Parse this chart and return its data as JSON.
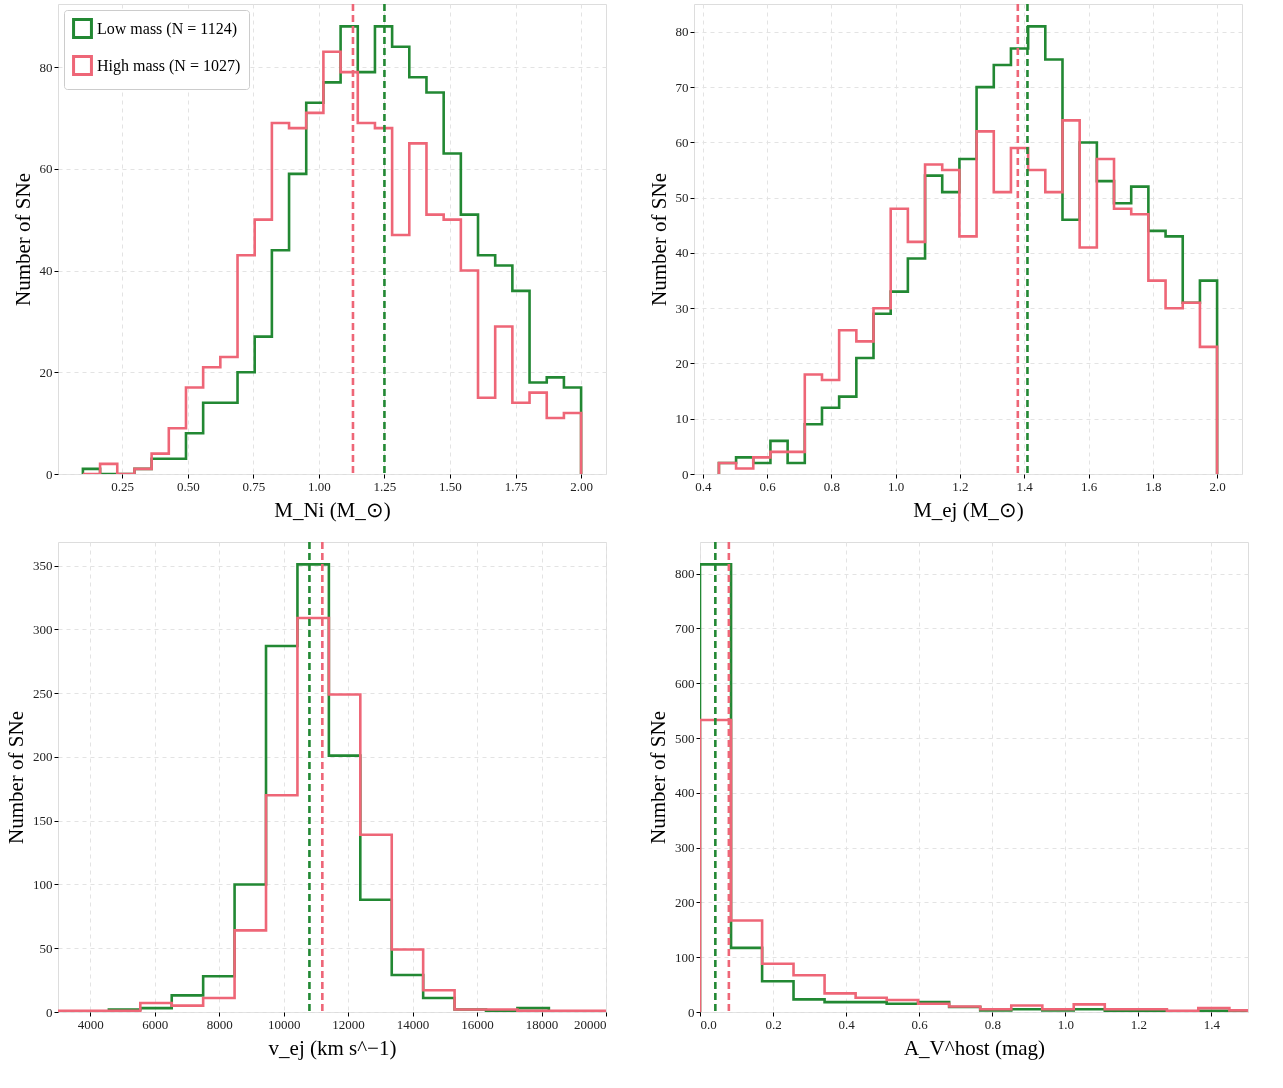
{
  "chart_data": [
    {
      "type": "histogram",
      "xlabel": "M_Ni (M_⊙)",
      "ylabel": "Number of SNe",
      "legend": "top left",
      "grid": true,
      "bins": [
        0.1,
        0.1655,
        0.231,
        0.2966,
        0.3621,
        0.4276,
        0.4931,
        0.5586,
        0.6241,
        0.6897,
        0.7552,
        0.8207,
        0.8862,
        0.9517,
        1.0172,
        1.0828,
        1.1483,
        1.2138,
        1.2793,
        1.3448,
        1.4103,
        1.4759,
        1.5414,
        1.6069,
        1.6724,
        1.7379,
        1.8034,
        1.869,
        1.9345,
        2.0
      ],
      "series": [
        {
          "name": "Low mass (N = 1124)",
          "color": "#228833",
          "values": [
            1,
            0,
            0,
            1,
            3,
            3,
            8,
            14,
            14,
            20,
            27,
            44,
            59,
            73,
            77,
            88,
            79,
            88,
            84,
            78,
            75,
            63,
            51,
            43,
            41,
            36,
            18,
            19,
            17
          ]
        },
        {
          "name": "High mass (N = 1027)",
          "color": "#ee6677",
          "values": [
            0,
            2,
            0,
            1,
            4,
            9,
            17,
            21,
            23,
            43,
            50,
            69,
            68,
            71,
            83,
            79,
            69,
            68,
            47,
            65,
            51,
            50,
            40,
            15,
            29,
            14,
            16,
            11,
            12
          ]
        }
      ],
      "ref_lines": [
        {
          "axis": "x",
          "value": 1.25,
          "color": "#228833",
          "line_style": "dashed"
        },
        {
          "axis": "x",
          "value": 1.13,
          "color": "#ee6677",
          "line_style": "dashed"
        }
      ],
      "xlim": [
        0.005,
        2.095
      ],
      "xticks": [
        0.25,
        {
          "value": 0.5,
          "label": "0.50"
        },
        0.75,
        {
          "value": 1.0,
          "label": "1.00"
        },
        1.25,
        {
          "value": 1.5,
          "label": "1.50"
        },
        1.75,
        {
          "value": 2.0,
          "label": "2.00"
        }
      ],
      "ylim": [
        0,
        92.4
      ],
      "yticks": [
        0,
        20,
        40,
        60,
        80
      ]
    },
    {
      "type": "histogram",
      "xlabel": "M_ej (M_⊙)",
      "ylabel": "Number of SNe",
      "grid": true,
      "bins": [
        0.45,
        0.5034,
        0.5569,
        0.6103,
        0.6638,
        0.7172,
        0.7707,
        0.8241,
        0.8776,
        0.931,
        0.9845,
        1.0379,
        1.0914,
        1.1448,
        1.1983,
        1.2517,
        1.3052,
        1.3586,
        1.4121,
        1.4655,
        1.519,
        1.5724,
        1.6259,
        1.6793,
        1.7328,
        1.7862,
        1.8397,
        1.8931,
        1.9466,
        2.0
      ],
      "series": [
        {
          "color": "#228833",
          "values": [
            2,
            3,
            2,
            6,
            2,
            9,
            12,
            14,
            21,
            29,
            33,
            39,
            54,
            51,
            57,
            70,
            74,
            77,
            81,
            75,
            46,
            60,
            53,
            49,
            52,
            44,
            43,
            31,
            35
          ]
        },
        {
          "color": "#ee6677",
          "values": [
            2,
            1,
            3,
            4,
            4,
            18,
            17,
            26,
            24,
            30,
            48,
            42,
            56,
            55,
            43,
            62,
            51,
            59,
            55,
            51,
            64,
            41,
            57,
            48,
            47,
            35,
            30,
            31,
            23
          ]
        }
      ],
      "ref_lines": [
        {
          "axis": "x",
          "value": 1.41,
          "color": "#228833",
          "line_style": "dashed"
        },
        {
          "axis": "x",
          "value": 1.38,
          "color": "#ee6677",
          "line_style": "dashed"
        }
      ],
      "xlim": [
        0.3725,
        2.0775
      ],
      "xticks": [
        0.4,
        0.6,
        0.8,
        {
          "value": 1.0,
          "label": "1.0"
        },
        1.2,
        1.4,
        1.6,
        1.8,
        {
          "value": 2.0,
          "label": "2.0"
        }
      ],
      "ylim": [
        0,
        85.05
      ],
      "yticks": [
        0,
        10,
        20,
        30,
        40,
        50,
        60,
        70,
        80
      ]
    },
    {
      "type": "histogram",
      "xlabel": "v_ej (km s^−1)",
      "ylabel": "Number of SNe",
      "grid": true,
      "bins": [
        3000,
        3603,
        4578,
        5553,
        6528,
        7503,
        8478,
        9453,
        10428,
        11403,
        12378,
        13353,
        14328,
        15303,
        16278,
        17253,
        18228,
        19203,
        20000
      ],
      "series": [
        {
          "color": "#228833",
          "values": [
            0,
            0,
            2,
            3,
            13,
            28,
            100,
            287,
            351,
            201,
            88,
            29,
            11,
            2,
            1,
            3,
            0,
            0
          ]
        },
        {
          "color": "#ee6677",
          "values": [
            1,
            1,
            1,
            7,
            5,
            11,
            64,
            170,
            309,
            249,
            139,
            49,
            17,
            2,
            2,
            1,
            1,
            1
          ]
        }
      ],
      "ref_lines": [
        {
          "axis": "x",
          "value": 10800,
          "color": "#228833",
          "line_style": "dashed"
        },
        {
          "axis": "x",
          "value": 11200,
          "color": "#ee6677",
          "line_style": "dashed"
        }
      ],
      "xlim": [
        3000,
        20000
      ],
      "xticks": [
        4000,
        6000,
        8000,
        10000,
        12000,
        14000,
        16000,
        18000,
        20000
      ],
      "ylim": [
        0,
        368.55
      ],
      "yticks": [
        0,
        50,
        100,
        150,
        200,
        250,
        300,
        350
      ]
    },
    {
      "type": "histogram",
      "xlabel": "A_V^host (mag)",
      "ylabel": "Number of SNe",
      "grid": true,
      "bins": [
        0,
        0.085,
        0.17,
        0.256,
        0.341,
        0.426,
        0.511,
        0.597,
        0.682,
        0.767,
        0.852,
        0.937,
        1.023,
        1.108,
        1.193,
        1.278,
        1.364,
        1.449,
        1.5
      ],
      "series": [
        {
          "color": "#228833",
          "values": [
            817,
            117,
            56,
            23,
            18,
            18,
            15,
            18,
            9,
            3,
            5,
            3,
            5,
            2,
            2,
            0,
            2,
            0
          ]
        },
        {
          "color": "#ee6677",
          "values": [
            533,
            167,
            88,
            67,
            34,
            26,
            22,
            15,
            10,
            5,
            12,
            5,
            14,
            5,
            5,
            2,
            7,
            3
          ]
        }
      ],
      "ref_lines": [
        {
          "axis": "x",
          "value": 0.042,
          "color": "#228833",
          "line_style": "dashed"
        },
        {
          "axis": "x",
          "value": 0.079,
          "color": "#ee6677",
          "line_style": "dashed"
        }
      ],
      "xlim": [
        0,
        1.5
      ],
      "xticks": [
        {
          "value": 0,
          "label": "0.0"
        },
        0.2,
        0.4,
        0.6,
        0.8,
        {
          "value": 1.0,
          "label": "1.0"
        },
        1.2,
        1.4
      ],
      "ylim": [
        0,
        857.85
      ],
      "yticks": [
        0,
        100,
        200,
        300,
        400,
        500,
        600,
        700,
        800
      ]
    }
  ]
}
